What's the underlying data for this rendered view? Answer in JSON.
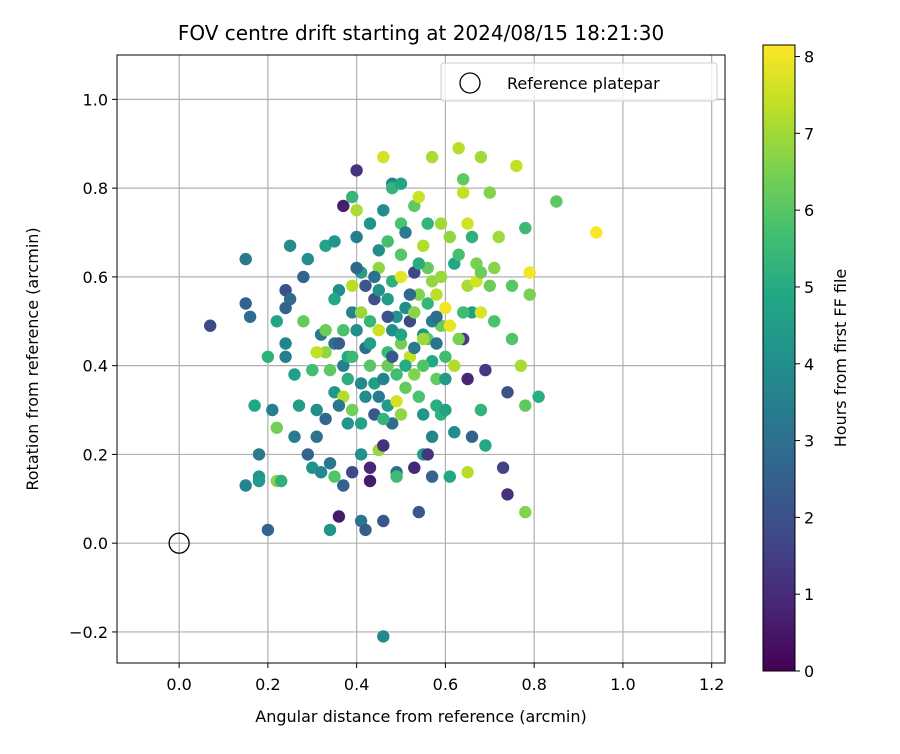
{
  "chart_data": {
    "type": "scatter",
    "title": "FOV centre drift starting at 2024/08/15 18:21:30",
    "xlabel": "Angular distance from reference (arcmin)",
    "ylabel": "Rotation from reference (arcmin)",
    "colorbar_label": "Hours from first FF file",
    "colormap": "viridis",
    "xlim": [
      -0.14,
      1.23
    ],
    "ylim": [
      -0.27,
      1.1
    ],
    "clim": [
      0,
      8.15
    ],
    "x_ticks": [
      0.0,
      0.2,
      0.4,
      0.6,
      0.8,
      1.0,
      1.2
    ],
    "x_tick_labels": [
      "0.0",
      "0.2",
      "0.4",
      "0.6",
      "0.8",
      "1.0",
      "1.2"
    ],
    "y_ticks": [
      -0.2,
      0.0,
      0.2,
      0.4,
      0.6,
      0.8,
      1.0
    ],
    "y_tick_labels": [
      "−0.2",
      "0.0",
      "0.2",
      "0.4",
      "0.6",
      "0.8",
      "1.0"
    ],
    "colorbar_ticks": [
      0,
      1,
      2,
      3,
      4,
      5,
      6,
      7,
      8
    ],
    "colorbar_tick_labels": [
      "0",
      "1",
      "2",
      "3",
      "4",
      "5",
      "6",
      "7",
      "8"
    ],
    "grid": true,
    "legend": {
      "position": "upper-right",
      "entries": [
        "Reference platepar"
      ]
    },
    "reference_point": {
      "x": 0.0,
      "y": 0.0
    },
    "points": [
      [
        0.07,
        0.49,
        1.8
      ],
      [
        0.15,
        0.64,
        3.3
      ],
      [
        0.15,
        0.54,
        2.6
      ],
      [
        0.16,
        0.51,
        2.9
      ],
      [
        0.15,
        0.13,
        3.6
      ],
      [
        0.17,
        0.31,
        4.8
      ],
      [
        0.18,
        0.2,
        3.3
      ],
      [
        0.18,
        0.15,
        4.2
      ],
      [
        0.18,
        0.14,
        4.4
      ],
      [
        0.2,
        0.03,
        2.6
      ],
      [
        0.2,
        0.42,
        5.2
      ],
      [
        0.21,
        0.3,
        3.5
      ],
      [
        0.22,
        0.26,
        6.4
      ],
      [
        0.22,
        0.5,
        4.8
      ],
      [
        0.22,
        0.14,
        6.7
      ],
      [
        0.23,
        0.14,
        5.2
      ],
      [
        0.24,
        0.53,
        2.5
      ],
      [
        0.24,
        0.57,
        2.0
      ],
      [
        0.24,
        0.45,
        3.7
      ],
      [
        0.24,
        0.42,
        3.5
      ],
      [
        0.25,
        0.55,
        2.8
      ],
      [
        0.25,
        0.67,
        3.9
      ],
      [
        0.26,
        0.24,
        3.4
      ],
      [
        0.26,
        0.38,
        4.6
      ],
      [
        0.27,
        0.31,
        4.5
      ],
      [
        0.28,
        0.6,
        2.6
      ],
      [
        0.28,
        0.5,
        6.2
      ],
      [
        0.29,
        0.2,
        2.6
      ],
      [
        0.29,
        0.64,
        4.0
      ],
      [
        0.3,
        0.39,
        5.6
      ],
      [
        0.3,
        0.17,
        4.1
      ],
      [
        0.31,
        0.24,
        3.1
      ],
      [
        0.31,
        0.3,
        4.0
      ],
      [
        0.32,
        0.16,
        3.8
      ],
      [
        0.32,
        0.47,
        3.2
      ],
      [
        0.33,
        0.67,
        4.7
      ],
      [
        0.33,
        0.43,
        6.8
      ],
      [
        0.33,
        0.28,
        2.7
      ],
      [
        0.34,
        0.18,
        3.2
      ],
      [
        0.34,
        0.03,
        4.2
      ],
      [
        0.35,
        0.68,
        4.3
      ],
      [
        0.35,
        0.45,
        3.1
      ],
      [
        0.35,
        0.15,
        5.9
      ],
      [
        0.35,
        0.34,
        4.3
      ],
      [
        0.36,
        0.57,
        3.9
      ],
      [
        0.36,
        0.06,
        0.6
      ],
      [
        0.37,
        0.76,
        0.7
      ],
      [
        0.37,
        0.13,
        2.5
      ],
      [
        0.37,
        0.33,
        7.2
      ],
      [
        0.37,
        0.4,
        3.5
      ],
      [
        0.38,
        0.27,
        4.3
      ],
      [
        0.38,
        0.42,
        4.9
      ],
      [
        0.39,
        0.78,
        5.4
      ],
      [
        0.39,
        0.16,
        1.8
      ],
      [
        0.39,
        0.52,
        3.6
      ],
      [
        0.39,
        0.3,
        6.4
      ],
      [
        0.4,
        0.84,
        1.2
      ],
      [
        0.4,
        0.75,
        7.1
      ],
      [
        0.4,
        0.69,
        3.5
      ],
      [
        0.4,
        0.48,
        4.0
      ],
      [
        0.41,
        0.2,
        4.1
      ],
      [
        0.41,
        0.05,
        3.2
      ],
      [
        0.41,
        0.61,
        4.5
      ],
      [
        0.41,
        0.36,
        3.8
      ],
      [
        0.42,
        0.58,
        2.2
      ],
      [
        0.42,
        0.44,
        2.9
      ],
      [
        0.42,
        0.03,
        2.4
      ],
      [
        0.43,
        0.17,
        0.9
      ],
      [
        0.43,
        0.14,
        0.6
      ],
      [
        0.43,
        0.72,
        4.2
      ],
      [
        0.43,
        0.5,
        5.4
      ],
      [
        0.44,
        0.55,
        2.0
      ],
      [
        0.44,
        0.29,
        2.2
      ],
      [
        0.45,
        0.66,
        3.9
      ],
      [
        0.45,
        0.33,
        3.4
      ],
      [
        0.45,
        0.62,
        6.8
      ],
      [
        0.45,
        0.21,
        6.9
      ],
      [
        0.46,
        0.05,
        2.2
      ],
      [
        0.46,
        0.22,
        1.1
      ],
      [
        0.46,
        0.75,
        3.9
      ],
      [
        0.46,
        0.87,
        7.6
      ],
      [
        0.46,
        -0.21,
        3.8
      ],
      [
        0.47,
        0.68,
        5.7
      ],
      [
        0.47,
        0.55,
        4.5
      ],
      [
        0.47,
        0.4,
        6.3
      ],
      [
        0.47,
        0.31,
        4.4
      ],
      [
        0.48,
        0.81,
        3.7
      ],
      [
        0.48,
        0.8,
        5.3
      ],
      [
        0.48,
        0.59,
        5.2
      ],
      [
        0.48,
        0.48,
        3.9
      ],
      [
        0.48,
        0.27,
        2.9
      ],
      [
        0.49,
        0.16,
        3.0
      ],
      [
        0.49,
        0.15,
        5.6
      ],
      [
        0.49,
        0.38,
        5.6
      ],
      [
        0.5,
        0.81,
        4.8
      ],
      [
        0.5,
        0.72,
        5.8
      ],
      [
        0.5,
        0.65,
        6.0
      ],
      [
        0.5,
        0.45,
        6.4
      ],
      [
        0.5,
        0.29,
        6.8
      ],
      [
        0.51,
        0.7,
        3.4
      ],
      [
        0.51,
        0.53,
        3.9
      ],
      [
        0.52,
        0.5,
        1.8
      ],
      [
        0.52,
        0.42,
        7.4
      ],
      [
        0.53,
        0.76,
        6.1
      ],
      [
        0.53,
        0.61,
        1.7
      ],
      [
        0.53,
        0.38,
        6.6
      ],
      [
        0.53,
        0.17,
        0.9
      ],
      [
        0.54,
        0.07,
        2.2
      ],
      [
        0.54,
        0.78,
        7.5
      ],
      [
        0.54,
        0.56,
        6.6
      ],
      [
        0.54,
        0.33,
        5.8
      ],
      [
        0.55,
        0.67,
        7.2
      ],
      [
        0.55,
        0.47,
        4.2
      ],
      [
        0.55,
        0.2,
        4.5
      ],
      [
        0.55,
        0.29,
        4.3
      ],
      [
        0.56,
        0.2,
        1.3
      ],
      [
        0.56,
        0.62,
        6.2
      ],
      [
        0.56,
        0.72,
        5.3
      ],
      [
        0.56,
        0.46,
        6.1
      ],
      [
        0.57,
        0.87,
        7.1
      ],
      [
        0.57,
        0.59,
        6.8
      ],
      [
        0.57,
        0.41,
        4.9
      ],
      [
        0.57,
        0.24,
        3.7
      ],
      [
        0.57,
        0.15,
        2.6
      ],
      [
        0.58,
        0.31,
        5.1
      ],
      [
        0.58,
        0.56,
        7.3
      ],
      [
        0.58,
        0.37,
        6.2
      ],
      [
        0.59,
        0.72,
        7.0
      ],
      [
        0.59,
        0.49,
        6.3
      ],
      [
        0.59,
        0.29,
        5.2
      ],
      [
        0.6,
        0.42,
        5.6
      ],
      [
        0.6,
        0.53,
        8.0
      ],
      [
        0.6,
        0.3,
        4.7
      ],
      [
        0.61,
        0.49,
        7.9
      ],
      [
        0.61,
        0.69,
        6.8
      ],
      [
        0.61,
        0.15,
        4.9
      ],
      [
        0.62,
        0.63,
        4.8
      ],
      [
        0.62,
        0.25,
        3.9
      ],
      [
        0.63,
        0.89,
        7.3
      ],
      [
        0.63,
        0.65,
        5.7
      ],
      [
        0.64,
        0.79,
        7.4
      ],
      [
        0.64,
        0.82,
        6.1
      ],
      [
        0.64,
        0.46,
        1.4
      ],
      [
        0.65,
        0.72,
        7.6
      ],
      [
        0.65,
        0.58,
        7.1
      ],
      [
        0.65,
        0.37,
        0.9
      ],
      [
        0.65,
        0.16,
        7.3
      ],
      [
        0.66,
        0.69,
        5.2
      ],
      [
        0.66,
        0.52,
        4.6
      ],
      [
        0.66,
        0.24,
        2.6
      ],
      [
        0.67,
        0.63,
        6.5
      ],
      [
        0.67,
        0.59,
        7.6
      ],
      [
        0.68,
        0.87,
        7.0
      ],
      [
        0.68,
        0.61,
        6.3
      ],
      [
        0.68,
        0.52,
        7.7
      ],
      [
        0.68,
        0.3,
        5.3
      ],
      [
        0.69,
        0.39,
        1.4
      ],
      [
        0.69,
        0.22,
        4.9
      ],
      [
        0.7,
        0.79,
        6.6
      ],
      [
        0.7,
        0.58,
        6.3
      ],
      [
        0.71,
        0.62,
        6.7
      ],
      [
        0.71,
        0.5,
        5.8
      ],
      [
        0.72,
        0.69,
        7.0
      ],
      [
        0.73,
        0.17,
        1.6
      ],
      [
        0.74,
        0.34,
        2.1
      ],
      [
        0.74,
        0.11,
        1.1
      ],
      [
        0.75,
        0.46,
        5.9
      ],
      [
        0.75,
        0.58,
        6.0
      ],
      [
        0.76,
        0.85,
        7.4
      ],
      [
        0.77,
        0.4,
        7.1
      ],
      [
        0.78,
        0.71,
        5.5
      ],
      [
        0.78,
        0.31,
        6.1
      ],
      [
        0.78,
        0.07,
        6.6
      ],
      [
        0.79,
        0.56,
        6.5
      ],
      [
        0.79,
        0.61,
        8.0
      ],
      [
        0.81,
        0.33,
        5.1
      ],
      [
        0.85,
        0.77,
        6.1
      ],
      [
        0.94,
        0.7,
        8.1
      ],
      [
        0.51,
        0.4,
        5.0
      ],
      [
        0.44,
        0.36,
        4.5
      ],
      [
        0.47,
        0.43,
        5.5
      ],
      [
        0.53,
        0.44,
        3.3
      ],
      [
        0.49,
        0.51,
        4.2
      ],
      [
        0.38,
        0.37,
        5.1
      ],
      [
        0.45,
        0.48,
        7.5
      ],
      [
        0.52,
        0.56,
        2.8
      ],
      [
        0.43,
        0.4,
        6.0
      ],
      [
        0.55,
        0.4,
        5.9
      ],
      [
        0.36,
        0.45,
        2.4
      ],
      [
        0.58,
        0.45,
        3.1
      ],
      [
        0.41,
        0.52,
        6.9
      ],
      [
        0.46,
        0.37,
        3.6
      ],
      [
        0.5,
        0.47,
        4.8
      ],
      [
        0.39,
        0.58,
        7.3
      ],
      [
        0.56,
        0.54,
        5.4
      ],
      [
        0.34,
        0.39,
        6.1
      ],
      [
        0.62,
        0.4,
        7.2
      ],
      [
        0.44,
        0.6,
        3.0
      ],
      [
        0.48,
        0.42,
        2.3
      ],
      [
        0.53,
        0.52,
        6.7
      ],
      [
        0.37,
        0.48,
        5.8
      ],
      [
        0.6,
        0.37,
        4.4
      ],
      [
        0.42,
        0.33,
        3.9
      ],
      [
        0.5,
        0.6,
        7.8
      ],
      [
        0.57,
        0.5,
        3.5
      ],
      [
        0.35,
        0.55,
        4.9
      ],
      [
        0.63,
        0.46,
        6.5
      ],
      [
        0.46,
        0.28,
        5.3
      ],
      [
        0.4,
        0.62,
        2.7
      ],
      [
        0.54,
        0.63,
        5.0
      ],
      [
        0.31,
        0.43,
        7.4
      ],
      [
        0.59,
        0.6,
        6.9
      ],
      [
        0.47,
        0.51,
        2.1
      ],
      [
        0.43,
        0.45,
        4.6
      ],
      [
        0.51,
        0.35,
        6.2
      ],
      [
        0.39,
        0.42,
        5.5
      ],
      [
        0.55,
        0.46,
        7.0
      ],
      [
        0.36,
        0.31,
        3.2
      ],
      [
        0.64,
        0.52,
        5.6
      ],
      [
        0.45,
        0.57,
        4.1
      ],
      [
        0.49,
        0.32,
        7.6
      ],
      [
        0.41,
        0.27,
        4.7
      ],
      [
        0.58,
        0.51,
        2.9
      ],
      [
        0.33,
        0.48,
        6.3
      ]
    ]
  }
}
